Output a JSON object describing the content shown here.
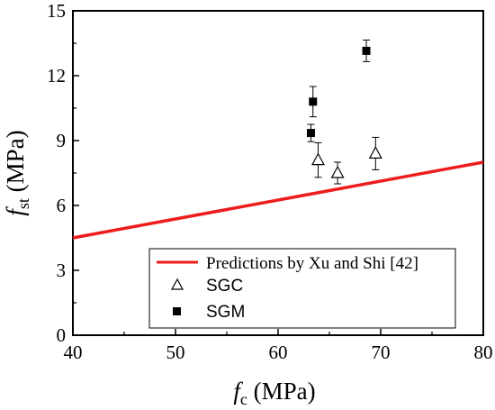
{
  "chart_data": {
    "type": "scatter",
    "xlabel": {
      "main": "f",
      "sub": "c",
      "unit": " (MPa)"
    },
    "ylabel": {
      "main": "f",
      "sub": "st",
      "unit": " (MPa)"
    },
    "xlim": [
      40,
      80
    ],
    "ylim": [
      0,
      15
    ],
    "xticks": [
      "40",
      "50",
      "60",
      "70",
      "80"
    ],
    "yticks": [
      "0",
      "3",
      "6",
      "9",
      "12",
      "15"
    ],
    "grid": false,
    "legend_position": "bottom-right",
    "series": [
      {
        "name": "Predictions by Xu and Shi [42]",
        "kind": "line",
        "color": "#ee1c1c",
        "x": [
          40,
          80
        ],
        "y": [
          4.5,
          8.0
        ]
      },
      {
        "name": "SGC",
        "kind": "scatter",
        "marker": "open-triangle",
        "color": "#000000",
        "points": [
          {
            "x": 63.9,
            "y": 8.1,
            "err": 0.8
          },
          {
            "x": 65.8,
            "y": 7.5,
            "err": 0.5
          },
          {
            "x": 69.5,
            "y": 8.4,
            "err": 0.75
          }
        ]
      },
      {
        "name": "SGM",
        "kind": "scatter",
        "marker": "filled-square",
        "color": "#000000",
        "points": [
          {
            "x": 63.2,
            "y": 9.35,
            "err": 0.4
          },
          {
            "x": 63.4,
            "y": 10.8,
            "err": 0.7
          },
          {
            "x": 68.6,
            "y": 13.15,
            "err": 0.5
          }
        ]
      }
    ]
  }
}
